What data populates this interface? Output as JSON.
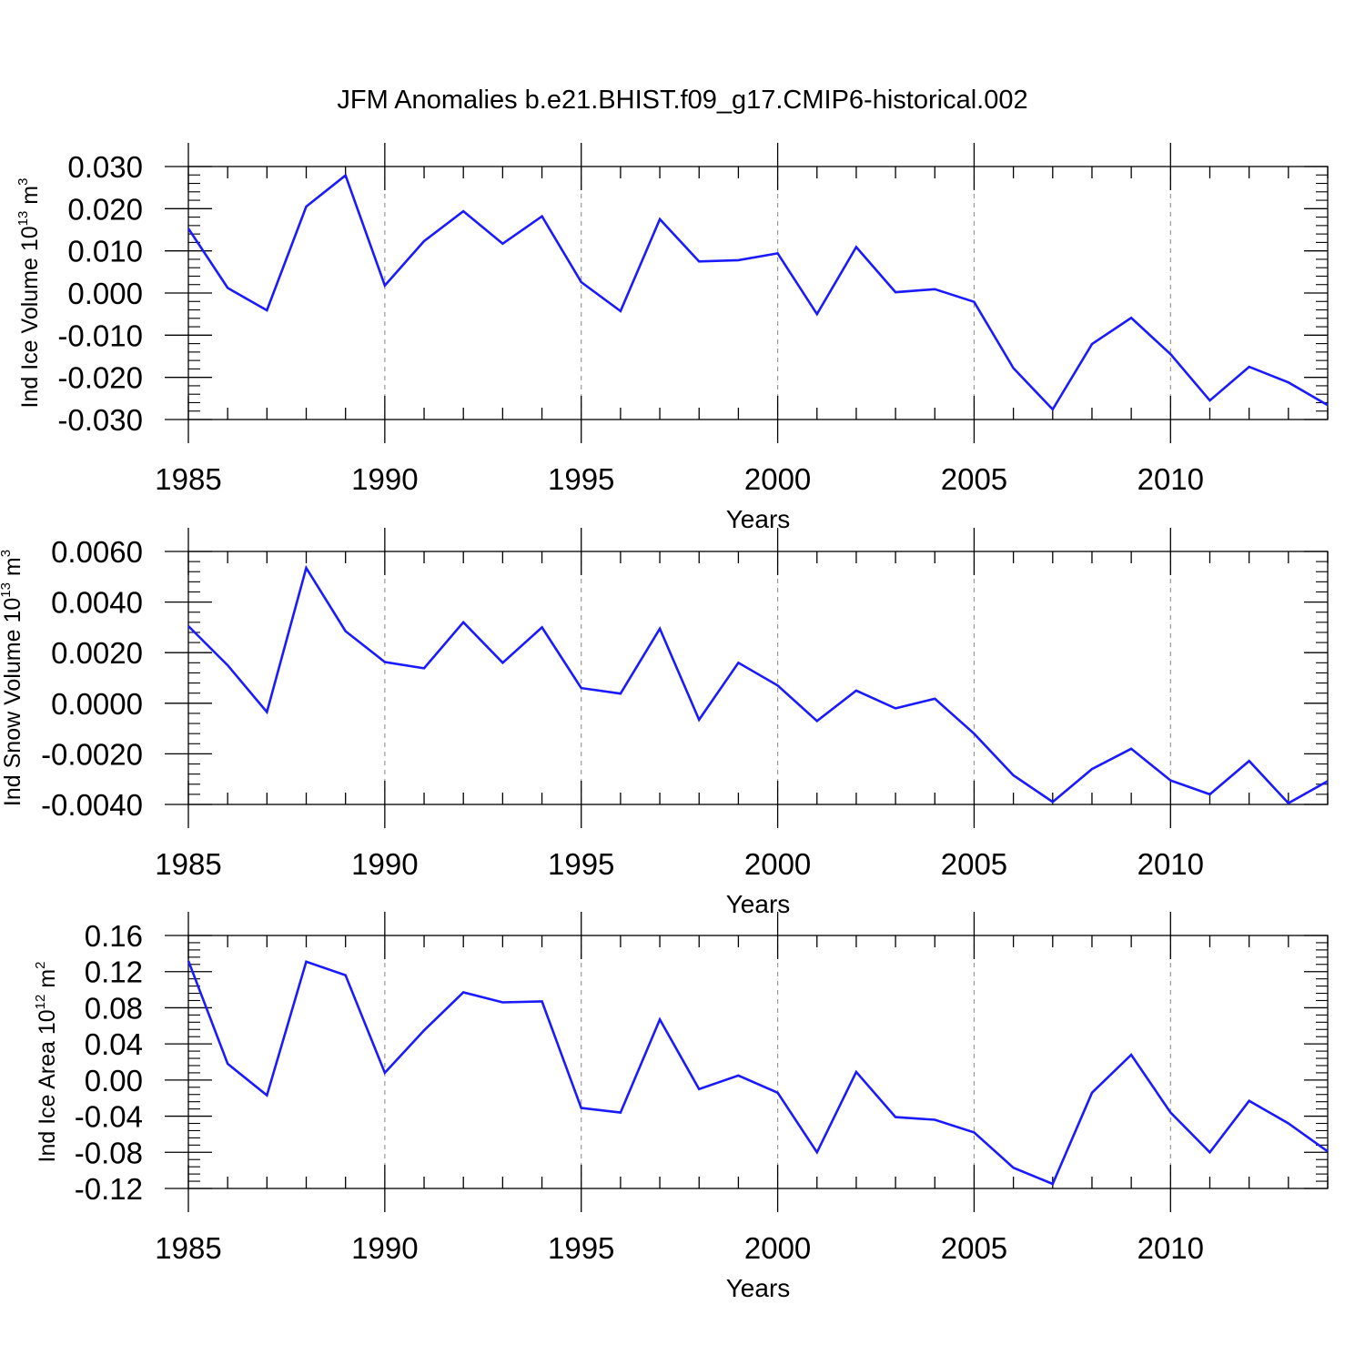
{
  "title": "JFM Anomalies b.e21.BHIST.f09_g17.CMIP6-historical.002",
  "line_color": "#1a1aff",
  "grid_color": "#9a9a9a",
  "chart_data": [
    {
      "type": "line",
      "title": "JFM Anomalies b.e21.BHIST.f09_g17.CMIP6-historical.002",
      "xlabel": "Years",
      "ylabel": {
        "main": "Ind Ice Volume 10",
        "sup": "13",
        "unit": " m",
        "unit_sup": "3"
      },
      "xlim": [
        1985,
        2014
      ],
      "ylim": [
        -0.03,
        0.03
      ],
      "x_ticks": [
        "1985",
        "1990",
        "1995",
        "2000",
        "2005",
        "2010"
      ],
      "y_ticks": [
        "0.030",
        "0.020",
        "0.010",
        "0.000",
        "-0.010",
        "-0.020",
        "-0.030"
      ],
      "y_tick_values": [
        0.03,
        0.02,
        0.01,
        0.0,
        -0.01,
        -0.02,
        -0.03
      ],
      "grid": "vertical dashed at major x ticks",
      "x": [
        1985,
        1986,
        1987,
        1988,
        1989,
        1990,
        1991,
        1992,
        1993,
        1994,
        1995,
        1996,
        1997,
        1998,
        1999,
        2000,
        2001,
        2002,
        2003,
        2004,
        2005,
        2006,
        2007,
        2008,
        2009,
        2010,
        2011,
        2012,
        2013,
        2014
      ],
      "y": [
        0.0153,
        0.0012,
        -0.0041,
        0.0205,
        0.0279,
        0.0018,
        0.0123,
        0.0194,
        0.0117,
        0.0182,
        0.0026,
        -0.0043,
        0.0175,
        0.0075,
        0.0078,
        0.0094,
        -0.005,
        0.0109,
        0.0002,
        0.0009,
        -0.0021,
        -0.0178,
        -0.0276,
        -0.0121,
        -0.0059,
        -0.0145,
        -0.0255,
        -0.0175,
        -0.0212,
        -0.0266
      ]
    },
    {
      "type": "line",
      "xlabel": "Years",
      "ylabel": {
        "main": "Ind Snow Volume 10",
        "sup": "13",
        "unit": " m",
        "unit_sup": "3"
      },
      "xlim": [
        1985,
        2014
      ],
      "ylim": [
        -0.004,
        0.006
      ],
      "x_ticks": [
        "1985",
        "1990",
        "1995",
        "2000",
        "2005",
        "2010"
      ],
      "y_ticks": [
        "0.0060",
        "0.0040",
        "0.0020",
        "0.0000",
        "-0.0020",
        "-0.0040"
      ],
      "y_tick_values": [
        0.006,
        0.004,
        0.002,
        0.0,
        -0.002,
        -0.004
      ],
      "grid": "vertical dashed at major x ticks",
      "x": [
        1985,
        1986,
        1987,
        1988,
        1989,
        1990,
        1991,
        1992,
        1993,
        1994,
        1995,
        1996,
        1997,
        1998,
        1999,
        2000,
        2001,
        2002,
        2003,
        2004,
        2005,
        2006,
        2007,
        2008,
        2009,
        2010,
        2011,
        2012,
        2013,
        2014
      ],
      "y": [
        0.00305,
        0.0015,
        -0.00035,
        0.00535,
        0.00285,
        0.00163,
        0.00138,
        0.0032,
        0.0016,
        0.003,
        0.0006,
        0.00038,
        0.00295,
        -0.00065,
        0.0016,
        0.0007,
        -0.0007,
        0.0005,
        -0.0002,
        0.00018,
        -0.0012,
        -0.00285,
        -0.0039,
        -0.0026,
        -0.0018,
        -0.00305,
        -0.0036,
        -0.00228,
        -0.00395,
        -0.00308
      ]
    },
    {
      "type": "line",
      "xlabel": "Years",
      "ylabel": {
        "main": "Ind Ice Area 10",
        "sup": "12",
        "unit": " m",
        "unit_sup": "2"
      },
      "xlim": [
        1985,
        2014
      ],
      "ylim": [
        -0.12,
        0.16
      ],
      "x_ticks": [
        "1985",
        "1990",
        "1995",
        "2000",
        "2005",
        "2010"
      ],
      "y_ticks": [
        "0.16",
        "0.12",
        "0.08",
        "0.04",
        "0.00",
        "-0.04",
        "-0.08",
        "-0.12"
      ],
      "y_tick_values": [
        0.16,
        0.12,
        0.08,
        0.04,
        0.0,
        -0.04,
        -0.08,
        -0.12
      ],
      "grid": "vertical dashed at major x ticks",
      "x": [
        1985,
        1986,
        1987,
        1988,
        1989,
        1990,
        1991,
        1992,
        1993,
        1994,
        1995,
        1996,
        1997,
        1998,
        1999,
        2000,
        2001,
        2002,
        2003,
        2004,
        2005,
        2006,
        2007,
        2008,
        2009,
        2010,
        2011,
        2012,
        2013,
        2014
      ],
      "y": [
        0.132,
        0.018,
        -0.017,
        0.131,
        0.116,
        0.008,
        0.055,
        0.097,
        0.086,
        0.087,
        -0.031,
        -0.036,
        0.067,
        -0.01,
        0.005,
        -0.014,
        -0.08,
        0.009,
        -0.041,
        -0.044,
        -0.058,
        -0.097,
        -0.115,
        -0.014,
        0.028,
        -0.036,
        -0.08,
        -0.023,
        -0.048,
        -0.079
      ]
    }
  ]
}
